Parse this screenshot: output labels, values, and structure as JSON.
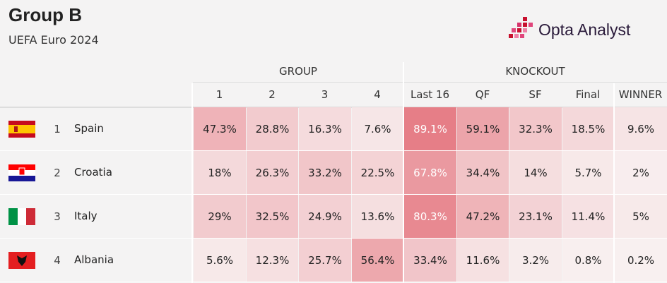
{
  "header": {
    "title": "Group B",
    "subtitle": "UEFA Euro 2024",
    "brand": "Opta Analyst"
  },
  "table": {
    "groups": [
      "GROUP",
      "KNOCKOUT"
    ],
    "columns": [
      "1",
      "2",
      "3",
      "4",
      "Last 16",
      "QF",
      "SF",
      "Final",
      "WINNER"
    ],
    "rows": [
      {
        "rank": "1",
        "team": "Spain",
        "cells": [
          "47.3%",
          "28.8%",
          "16.3%",
          "7.6%",
          "89.1%",
          "59.1%",
          "32.3%",
          "18.5%",
          "9.6%"
        ]
      },
      {
        "rank": "2",
        "team": "Croatia",
        "cells": [
          "18%",
          "26.3%",
          "33.2%",
          "22.5%",
          "67.8%",
          "34.4%",
          "14%",
          "5.7%",
          "2%"
        ]
      },
      {
        "rank": "3",
        "team": "Italy",
        "cells": [
          "29%",
          "32.5%",
          "24.9%",
          "13.6%",
          "80.3%",
          "47.2%",
          "23.1%",
          "11.4%",
          "5%"
        ]
      },
      {
        "rank": "4",
        "team": "Albania",
        "cells": [
          "5.6%",
          "12.3%",
          "25.7%",
          "56.4%",
          "33.4%",
          "11.6%",
          "3.2%",
          "0.8%",
          "0.2%"
        ]
      }
    ]
  }
}
